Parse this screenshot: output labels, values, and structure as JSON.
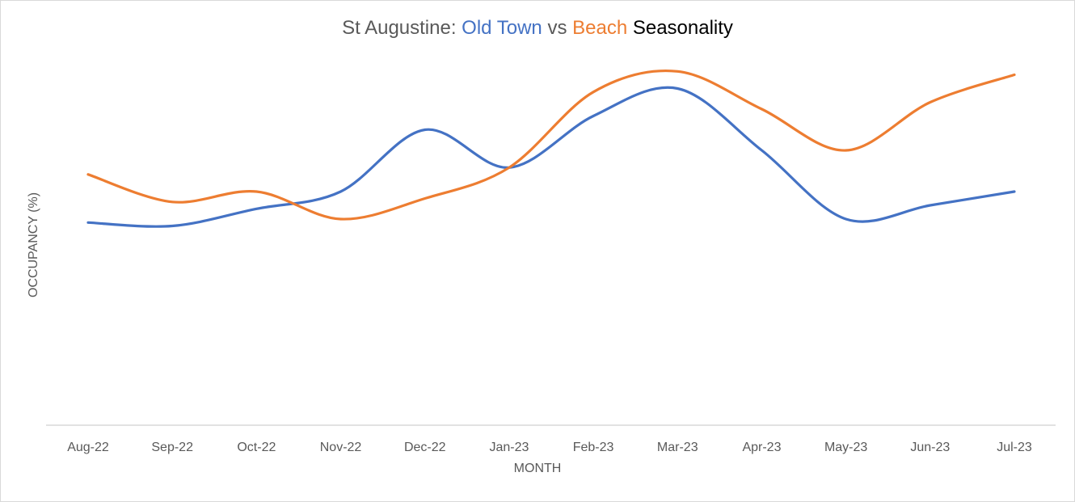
{
  "chart_data": {
    "type": "line",
    "title": {
      "prefix": "St Augustine: ",
      "series_a": "Old Town",
      "vs": " vs ",
      "series_b": "Beach",
      "suffix": " Seasonality"
    },
    "xlabel": "MONTH",
    "ylabel": "OCCUPANCY (%)",
    "categories": [
      "Aug-22",
      "Sep-22",
      "Oct-22",
      "Nov-22",
      "Dec-22",
      "Jan-23",
      "Feb-23",
      "Mar-23",
      "Apr-23",
      "May-23",
      "Jun-23",
      "Jul-23"
    ],
    "ylim": [
      0,
      100
    ],
    "grid": false,
    "legend": "none",
    "smooth": true,
    "series": [
      {
        "name": "Old Town",
        "color": "#4472c4",
        "values": [
          59,
          58,
          63,
          68,
          86,
          75,
          90,
          98,
          80,
          60,
          64,
          68
        ]
      },
      {
        "name": "Beach",
        "color": "#ed7d31",
        "values": [
          73,
          65,
          68,
          60,
          66,
          75,
          97,
          103,
          92,
          80,
          94,
          102
        ]
      }
    ]
  }
}
